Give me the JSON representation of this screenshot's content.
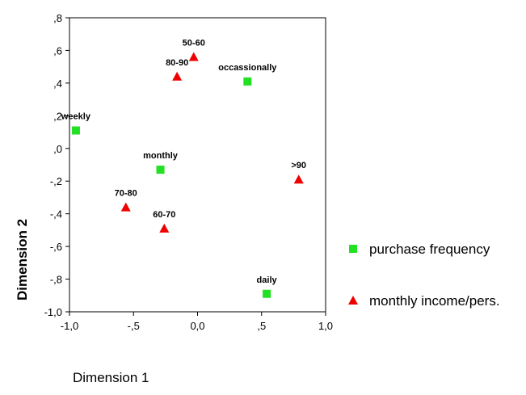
{
  "chart_data": {
    "type": "scatter",
    "xlabel": "Dimension 1",
    "ylabel": "Dimension 2",
    "xlim": [
      -1.0,
      1.0
    ],
    "ylim": [
      -1.0,
      0.8
    ],
    "xticks": [
      -1.0,
      -0.5,
      0.0,
      0.5,
      1.0
    ],
    "xtick_labels": [
      "-1,0",
      "-,5",
      "0,0",
      ",5",
      "1,0"
    ],
    "yticks": [
      0.8,
      0.6,
      0.4,
      0.2,
      0.0,
      -0.2,
      -0.4,
      -0.6,
      -0.8,
      -1.0
    ],
    "ytick_labels": [
      ",8",
      ",6",
      ",4",
      ",2",
      ",0",
      "-,2",
      "-,4",
      "-,6",
      "-,8",
      "-1,0"
    ],
    "grid": false,
    "legend_position": "right",
    "series": [
      {
        "name": "purchase frequency",
        "marker": "square",
        "color": "#22e022",
        "points": [
          {
            "label": "weekly",
            "x": -0.95,
            "y": 0.11
          },
          {
            "label": "monthly",
            "x": -0.29,
            "y": -0.13
          },
          {
            "label": "occassionally",
            "x": 0.39,
            "y": 0.41
          },
          {
            "label": "daily",
            "x": 0.54,
            "y": -0.89
          }
        ]
      },
      {
        "name": "monthly income/pers.",
        "marker": "triangle",
        "color": "#ee0000",
        "points": [
          {
            "label": "50-60",
            "x": -0.03,
            "y": 0.56
          },
          {
            "label": "80-90",
            "x": -0.16,
            "y": 0.44
          },
          {
            "label": ">90",
            "x": 0.79,
            "y": -0.19
          },
          {
            "label": "70-80",
            "x": -0.56,
            "y": -0.36
          },
          {
            "label": "60-70",
            "x": -0.26,
            "y": -0.49
          }
        ]
      }
    ]
  }
}
